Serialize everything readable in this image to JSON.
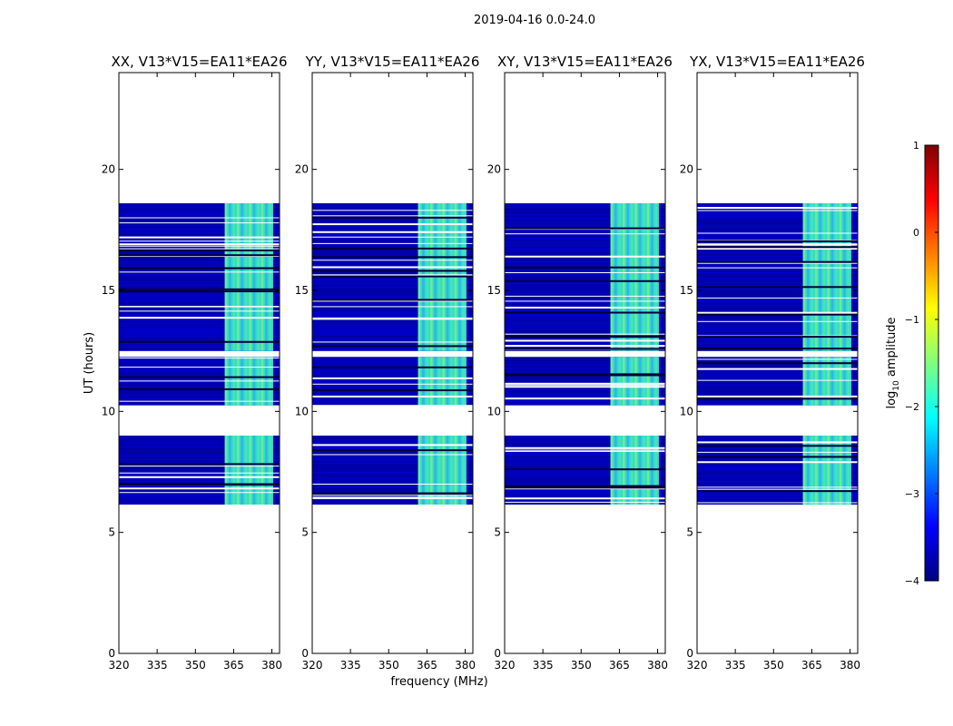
{
  "chart_data": {
    "type": "heatmap",
    "suptitle": "2019-04-16 0.0-24.0",
    "xlabel": "frequency (MHz)",
    "ylabel": "UT (hours)",
    "xlim": [
      320,
      383
    ],
    "ylim": [
      0,
      24
    ],
    "xticks": [
      320,
      335,
      350,
      365,
      380
    ],
    "yticks": [
      0,
      5,
      10,
      15,
      20
    ],
    "panels": [
      {
        "title": "XX, V13*V15=EA11*EA26",
        "rfi_band_mhz": [
          361.5,
          380.5
        ]
      },
      {
        "title": "YY, V13*V15=EA11*EA26",
        "rfi_band_mhz": [
          361.5,
          380.5
        ]
      },
      {
        "title": "XY, V13*V15=EA11*EA26",
        "rfi_band_mhz": [
          361.5,
          380.5
        ]
      },
      {
        "title": "YX, V13*V15=EA11*EA26",
        "rfi_band_mhz": [
          361.5,
          380.5
        ]
      }
    ],
    "data_blocks_hours": [
      [
        6.15,
        9.0
      ],
      [
        10.25,
        12.25
      ],
      [
        12.5,
        18.6
      ]
    ],
    "colorbar": {
      "label": "log10 amplitude",
      "label_base": "log",
      "label_sub": "10",
      "label_rest": " amplitude",
      "ticks": [
        1,
        0,
        -1,
        -2,
        -3,
        -4
      ],
      "tick_labels": [
        "1",
        "0",
        "−1",
        "−2",
        "−3",
        "−4"
      ],
      "range": [
        -4,
        1
      ],
      "colormap": [
        "#00007f",
        "#0000ff",
        "#007fff",
        "#00ffff",
        "#7fff7f",
        "#ffff00",
        "#ff7f00",
        "#ff0000",
        "#7f0000"
      ]
    }
  }
}
